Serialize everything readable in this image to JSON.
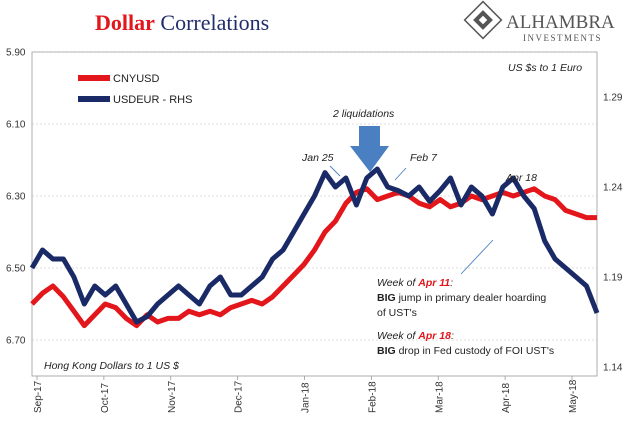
{
  "title": {
    "part1": "Dollar",
    "part2": " Correlations"
  },
  "brand": {
    "name": "ALHAMBRA",
    "sub": "INVESTMENTS"
  },
  "colors": {
    "cny": "#e3171b",
    "usd": "#1a2a66",
    "arrow": "#4a7fc1",
    "accent": "#e3171b"
  },
  "notes": {
    "top_right": "US $s to 1 Euro",
    "bottom_left": "Hong Kong Dollars to 1 US $",
    "liquidations": "2 liquidations",
    "jan25": "Jan 25",
    "feb7": "Feb 7",
    "apr18": "Apr 18",
    "w11_a": "Week of ",
    "w11_b": "Apr 11",
    "w11_c": ":",
    "w11_line2a": "BIG",
    "w11_line2b": " jump in primary dealer hoarding",
    "w11_line3": "of UST's",
    "w18_a": "Week of ",
    "w18_b": "Apr 18",
    "w18_c": ":",
    "w18_line2a": "BIG",
    "w18_line2b": " drop in Fed custody of FOI UST's"
  },
  "chart_data": {
    "type": "line",
    "x_axis": {
      "ticks": [
        "Sep-17",
        "Oct-17",
        "Nov-17",
        "Dec-17",
        "Jan-18",
        "Feb-18",
        "Mar-18",
        "Apr-18",
        "May-18"
      ],
      "range": [
        0,
        270
      ]
    },
    "y_left": {
      "ticks": [
        "5.90",
        "6.10",
        "6.30",
        "6.50",
        "6.70"
      ],
      "values": [
        5.9,
        6.1,
        6.3,
        6.5,
        6.7
      ],
      "range": [
        5.9,
        6.8
      ],
      "inverted": true
    },
    "y_right": {
      "ticks": [
        "1.29",
        "1.24",
        "1.19",
        "1.14"
      ],
      "values": [
        1.29,
        1.24,
        1.19,
        1.14
      ],
      "range": [
        1.135,
        1.315
      ]
    },
    "gridlines": true,
    "legend_position": "top-left",
    "series": [
      {
        "name": "CNYUSD",
        "axis": "left",
        "x": [
          0,
          5,
          10,
          15,
          20,
          25,
          30,
          35,
          40,
          45,
          50,
          55,
          60,
          65,
          70,
          75,
          80,
          85,
          90,
          95,
          100,
          105,
          110,
          115,
          120,
          125,
          130,
          135,
          140,
          145,
          150,
          155,
          160,
          165,
          170,
          175,
          180,
          185,
          190,
          195,
          200,
          205,
          210,
          215,
          220,
          225,
          230,
          235,
          240,
          245,
          250,
          255,
          260,
          265,
          270
        ],
        "y": [
          6.6,
          6.57,
          6.55,
          6.58,
          6.62,
          6.66,
          6.63,
          6.6,
          6.61,
          6.64,
          6.66,
          6.63,
          6.65,
          6.64,
          6.64,
          6.62,
          6.63,
          6.62,
          6.63,
          6.61,
          6.6,
          6.59,
          6.6,
          6.58,
          6.55,
          6.52,
          6.49,
          6.45,
          6.4,
          6.37,
          6.32,
          6.29,
          6.28,
          6.31,
          6.3,
          6.29,
          6.3,
          6.32,
          6.33,
          6.31,
          6.33,
          6.32,
          6.3,
          6.31,
          6.3,
          6.29,
          6.3,
          6.29,
          6.28,
          6.3,
          6.31,
          6.34,
          6.35,
          6.36,
          6.36
        ]
      },
      {
        "name": "USDEUR - RHS",
        "axis": "right",
        "x": [
          0,
          5,
          10,
          15,
          20,
          25,
          30,
          35,
          40,
          45,
          50,
          55,
          60,
          65,
          70,
          75,
          80,
          85,
          90,
          95,
          100,
          105,
          110,
          115,
          120,
          125,
          130,
          135,
          140,
          145,
          150,
          155,
          160,
          165,
          170,
          175,
          180,
          185,
          190,
          195,
          200,
          205,
          210,
          215,
          220,
          225,
          230,
          235,
          240,
          245,
          250,
          255,
          260,
          265,
          270
        ],
        "y": [
          1.195,
          1.205,
          1.2,
          1.2,
          1.19,
          1.175,
          1.185,
          1.18,
          1.185,
          1.175,
          1.165,
          1.168,
          1.175,
          1.18,
          1.185,
          1.18,
          1.175,
          1.185,
          1.19,
          1.18,
          1.18,
          1.185,
          1.19,
          1.2,
          1.205,
          1.215,
          1.225,
          1.235,
          1.248,
          1.24,
          1.245,
          1.23,
          1.245,
          1.25,
          1.24,
          1.238,
          1.235,
          1.24,
          1.232,
          1.238,
          1.245,
          1.23,
          1.24,
          1.235,
          1.225,
          1.24,
          1.245,
          1.235,
          1.228,
          1.21,
          1.2,
          1.195,
          1.19,
          1.185,
          1.17
        ]
      }
    ]
  }
}
